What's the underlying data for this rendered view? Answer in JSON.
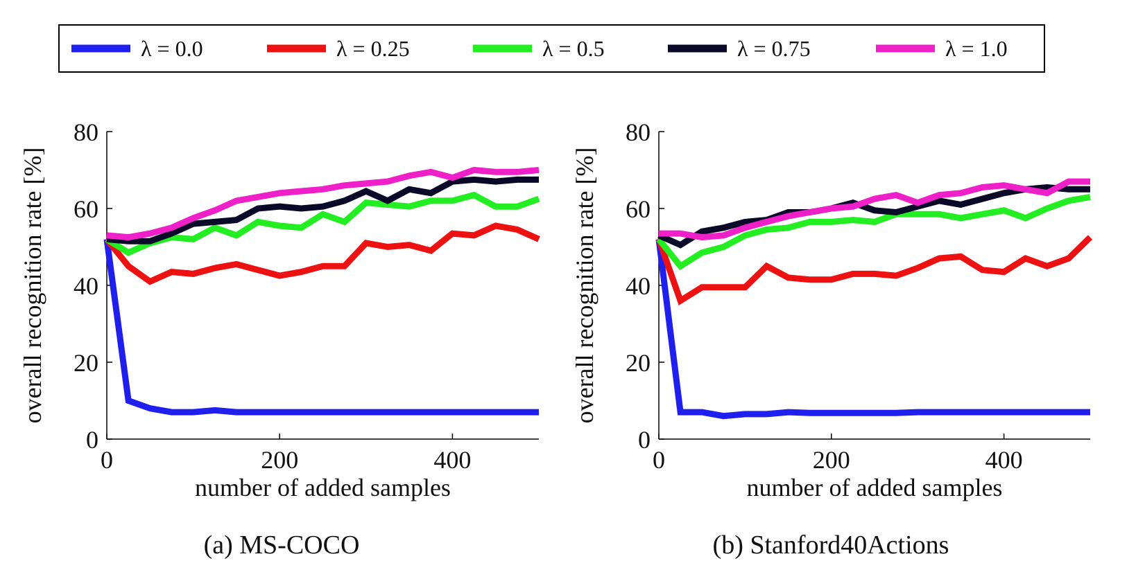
{
  "legend": {
    "entries": [
      {
        "label": "λ = 0.0",
        "color": "#1f1ff0"
      },
      {
        "label": "λ = 0.25",
        "color": "#ee1111"
      },
      {
        "label": "λ = 0.5",
        "color": "#22ee22"
      },
      {
        "label": "λ = 0.75",
        "color": "#0a0a28"
      },
      {
        "label": "λ = 1.0",
        "color": "#f020c8"
      }
    ]
  },
  "chart_data": [
    {
      "type": "line",
      "title": "(a) MS-COCO",
      "xlabel": "number of added samples",
      "ylabel": "overall recognition rate [%]",
      "xlim": [
        0,
        500
      ],
      "ylim": [
        0,
        80
      ],
      "xticks": [
        0,
        200,
        400
      ],
      "yticks": [
        0,
        20,
        40,
        60,
        80
      ],
      "grid": false,
      "x": [
        0,
        25,
        50,
        75,
        100,
        125,
        150,
        175,
        200,
        225,
        250,
        275,
        300,
        325,
        350,
        375,
        400,
        425,
        450,
        475,
        500
      ],
      "series": [
        {
          "name": "λ = 0.0",
          "color": "#1f1ff0",
          "values": [
            52,
            10,
            8,
            7,
            7,
            7.5,
            7,
            7,
            7,
            7,
            7,
            7,
            7,
            7,
            7,
            7,
            7,
            7,
            7,
            7,
            7
          ]
        },
        {
          "name": "λ = 0.25",
          "color": "#ee1111",
          "values": [
            52,
            45,
            41,
            43.5,
            43,
            44.5,
            45.5,
            44,
            42.5,
            43.5,
            45,
            45,
            51,
            50,
            50.5,
            49,
            53.5,
            53,
            55.5,
            54.5,
            52
          ]
        },
        {
          "name": "λ = 0.5",
          "color": "#22ee22",
          "values": [
            52,
            48.5,
            51,
            52.5,
            52,
            55,
            53,
            56.5,
            55.5,
            55,
            58.5,
            56.5,
            61.5,
            61,
            60.5,
            62,
            62,
            63.5,
            60.5,
            60.5,
            62.5
          ]
        },
        {
          "name": "λ = 0.75",
          "color": "#0a0a28",
          "values": [
            52,
            51.5,
            51.5,
            53.5,
            56,
            56.5,
            57,
            60,
            60.5,
            60,
            60.5,
            62,
            64.5,
            62,
            65,
            64,
            67,
            67.5,
            67,
            67.5,
            67.5
          ]
        },
        {
          "name": "λ = 1.0",
          "color": "#f020c8",
          "values": [
            53,
            52.5,
            53.5,
            55,
            57.5,
            59.5,
            62,
            63,
            64,
            64.5,
            65,
            66,
            66.5,
            67,
            68.5,
            69.5,
            68,
            70,
            69.5,
            69.5,
            70
          ]
        }
      ]
    },
    {
      "type": "line",
      "title": "(b) Stanford40Actions",
      "xlabel": "number of added samples",
      "ylabel": "overall recognition rate [%]",
      "xlim": [
        0,
        500
      ],
      "ylim": [
        0,
        80
      ],
      "xticks": [
        0,
        200,
        400
      ],
      "yticks": [
        0,
        20,
        40,
        60,
        80
      ],
      "grid": false,
      "x": [
        0,
        25,
        50,
        75,
        100,
        125,
        150,
        175,
        200,
        225,
        250,
        275,
        300,
        325,
        350,
        375,
        400,
        425,
        450,
        475,
        500
      ],
      "series": [
        {
          "name": "λ = 0.0",
          "color": "#1f1ff0",
          "values": [
            52,
            7,
            7,
            6,
            6.5,
            6.5,
            7,
            6.8,
            6.8,
            6.8,
            6.8,
            6.8,
            7,
            7,
            7,
            7,
            7,
            7,
            7,
            7,
            7
          ]
        },
        {
          "name": "λ = 0.25",
          "color": "#ee1111",
          "values": [
            52,
            36,
            39.5,
            39.5,
            39.5,
            45,
            42,
            41.5,
            41.5,
            43,
            43,
            42.5,
            44.5,
            47,
            47.5,
            44,
            43.5,
            47,
            45,
            47,
            52.5
          ]
        },
        {
          "name": "λ = 0.5",
          "color": "#22ee22",
          "values": [
            52,
            45,
            48.5,
            50,
            53,
            54.5,
            55,
            56.5,
            56.5,
            57,
            56.5,
            58.5,
            58.5,
            58.5,
            57.5,
            58.5,
            59.5,
            57.5,
            60,
            62,
            63
          ]
        },
        {
          "name": "λ = 0.75",
          "color": "#0a0a28",
          "values": [
            53,
            50.5,
            54,
            55,
            56.5,
            57,
            59,
            59,
            60,
            61.5,
            59.5,
            59,
            60.5,
            62,
            61,
            62.5,
            64,
            65,
            65.5,
            65,
            65
          ]
        },
        {
          "name": "λ = 1.0",
          "color": "#f020c8",
          "values": [
            53.5,
            53.5,
            52.5,
            53,
            55,
            56.5,
            58,
            59,
            60,
            60.5,
            62.5,
            63.5,
            61.5,
            63.5,
            64,
            65.5,
            66,
            65,
            64,
            67,
            67
          ]
        }
      ]
    }
  ]
}
